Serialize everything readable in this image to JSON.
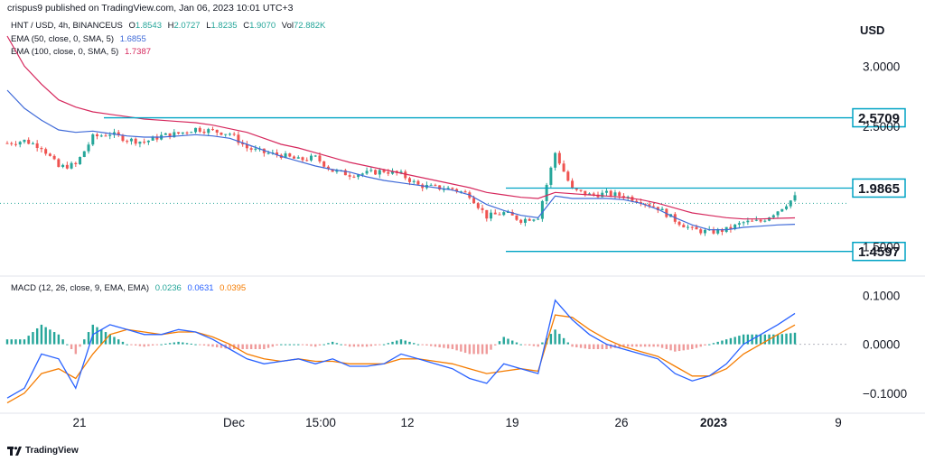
{
  "header": {
    "published": "crispus9 published on TradingView.com, Jan 06, 2023 10:01 UTC+3",
    "symbol_line": "HNT / USD, 4h, BINANCEUS",
    "ohlc": {
      "o_label": "O",
      "o": "1.8543",
      "h_label": "H",
      "h": "2.0727",
      "l_label": "L",
      "l": "1.8235",
      "c_label": "C",
      "c": "1.9070",
      "vol_label": "Vol",
      "vol": "72.882K"
    }
  },
  "indicators": {
    "ema50": {
      "label": "EMA (50, close, 0, SMA, 5)",
      "value": "1.6855",
      "color": "#3f6ad8"
    },
    "ema100": {
      "label": "EMA (100, close, 0, SMA, 5)",
      "value": "1.7387",
      "color": "#d6285d"
    },
    "macd": {
      "label": "MACD (12, 26, close, 9, EMA, EMA)",
      "hist": "0.0236",
      "macd": "0.0631",
      "signal": "0.0395",
      "hist_color": "#26a69a",
      "macd_color": "#2962ff",
      "signal_color": "#f57c00"
    }
  },
  "currency": "USD",
  "footer": {
    "brand": "TradingView"
  },
  "colors": {
    "up": "#26a69a",
    "down": "#ef5350",
    "level": "#00a3c4",
    "bg": "#ffffff"
  },
  "chart_data": {
    "type": "line",
    "title": "",
    "price_axis": {
      "ticks": [
        "3.0000",
        "2.5000",
        "1.5000"
      ],
      "ylim": [
        1.3,
        3.4
      ]
    },
    "macd_axis": {
      "ticks": [
        "0.1000",
        "0.0000",
        "−0.1000"
      ],
      "ylim": [
        -0.13,
        0.11
      ]
    },
    "x_ticks": [
      "21",
      "Dec",
      "15:00",
      "12",
      "19",
      "26",
      "2023",
      "9"
    ],
    "levels": [
      {
        "label": "2.5709",
        "value": 2.5709
      },
      {
        "label": "1.9865",
        "value": 1.9865
      },
      {
        "label": "1.4597",
        "value": 1.4597
      }
    ],
    "close_series": [
      2.36,
      2.38,
      2.33,
      2.16,
      2.18,
      2.41,
      2.44,
      2.39,
      2.37,
      2.42,
      2.44,
      2.48,
      2.46,
      2.44,
      2.32,
      2.28,
      2.26,
      2.22,
      2.24,
      2.13,
      2.1,
      2.11,
      2.13,
      2.1,
      2.01,
      1.99,
      1.98,
      1.93,
      1.75,
      1.78,
      1.72,
      1.75,
      2.28,
      1.97,
      1.93,
      1.94,
      1.92,
      1.88,
      1.82,
      1.72,
      1.64,
      1.62,
      1.64,
      1.7,
      1.71,
      1.8,
      1.91
    ],
    "ema50_series": [
      2.8,
      2.65,
      2.55,
      2.47,
      2.45,
      2.46,
      2.44,
      2.42,
      2.41,
      2.41,
      2.42,
      2.43,
      2.42,
      2.4,
      2.35,
      2.3,
      2.25,
      2.21,
      2.17,
      2.14,
      2.12,
      2.08,
      2.05,
      2.03,
      2.01,
      1.99,
      1.97,
      1.93,
      1.85,
      1.8,
      1.76,
      1.74,
      1.92,
      1.9,
      1.9,
      1.9,
      1.89,
      1.86,
      1.81,
      1.74,
      1.68,
      1.64,
      1.64,
      1.66,
      1.67,
      1.68,
      1.6855
    ],
    "ema100_series": [
      3.25,
      3.0,
      2.85,
      2.72,
      2.66,
      2.62,
      2.6,
      2.58,
      2.56,
      2.55,
      2.54,
      2.53,
      2.51,
      2.48,
      2.45,
      2.4,
      2.35,
      2.32,
      2.28,
      2.24,
      2.2,
      2.17,
      2.14,
      2.11,
      2.08,
      2.05,
      2.02,
      1.99,
      1.95,
      1.93,
      1.91,
      1.9,
      1.95,
      1.94,
      1.93,
      1.92,
      1.91,
      1.89,
      1.86,
      1.82,
      1.78,
      1.76,
      1.74,
      1.73,
      1.73,
      1.735,
      1.7387
    ],
    "macd_series": [
      -0.11,
      -0.09,
      -0.02,
      -0.03,
      -0.09,
      0.02,
      0.04,
      0.03,
      0.02,
      0.02,
      0.03,
      0.025,
      0.01,
      -0.01,
      -0.03,
      -0.04,
      -0.035,
      -0.03,
      -0.04,
      -0.03,
      -0.045,
      -0.045,
      -0.04,
      -0.02,
      -0.03,
      -0.04,
      -0.05,
      -0.07,
      -0.08,
      -0.04,
      -0.05,
      -0.06,
      0.09,
      0.05,
      0.02,
      0.0,
      -0.01,
      -0.02,
      -0.03,
      -0.06,
      -0.075,
      -0.065,
      -0.04,
      0.0,
      0.02,
      0.04,
      0.0631
    ],
    "signal_series": [
      -0.12,
      -0.1,
      -0.06,
      -0.05,
      -0.07,
      -0.02,
      0.02,
      0.03,
      0.025,
      0.02,
      0.025,
      0.025,
      0.015,
      0.0,
      -0.02,
      -0.03,
      -0.035,
      -0.03,
      -0.035,
      -0.035,
      -0.04,
      -0.04,
      -0.04,
      -0.03,
      -0.03,
      -0.035,
      -0.04,
      -0.05,
      -0.06,
      -0.055,
      -0.05,
      -0.055,
      0.06,
      0.055,
      0.03,
      0.01,
      -0.005,
      -0.015,
      -0.025,
      -0.045,
      -0.065,
      -0.065,
      -0.05,
      -0.02,
      0.0,
      0.02,
      0.0395
    ]
  }
}
